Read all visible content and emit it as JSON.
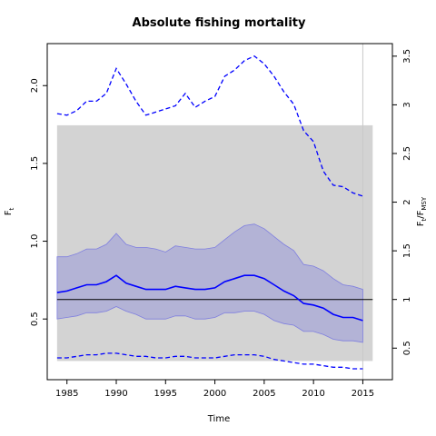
{
  "chart_data": {
    "type": "line",
    "title": "Absolute fishing mortality",
    "xlabel": "Time",
    "ylabel": "F",
    "ylabel_sub": "t",
    "y2label": "F",
    "y2label_sub": "t",
    "y2label_div": "/F",
    "y2label_div_sub": "MSY",
    "xlim": [
      1983,
      2018
    ],
    "ylim": [
      0.11,
      2.27
    ],
    "y2_scale_factor": 0.6255,
    "xticks": [
      1985,
      1990,
      1995,
      2000,
      2005,
      2010,
      2015
    ],
    "yticks": [
      0.5,
      1.0,
      1.5,
      2.0
    ],
    "yticklabels": [
      "0.5",
      "1.0",
      "1.5",
      "2.0"
    ],
    "y2ticks": [
      0.5,
      1,
      1.5,
      2,
      2.5,
      3,
      3.5
    ],
    "y2ticklabels": [
      "0.5",
      "1",
      "1.5",
      "2",
      "2.5",
      "3",
      "3.5"
    ],
    "grey_band": {
      "x": [
        1984,
        2016
      ],
      "y": [
        0.23,
        1.745
      ]
    },
    "fmsy_line": 0.6255,
    "last_obs_vline": 2015,
    "colors": {
      "estimate": "#0000ff",
      "ci_fill": "#b3b3d6",
      "ci_edge": "#7f7fdf",
      "grey_band": "#d3d3d3",
      "fmsy": "#000000",
      "vline": "#c8c8c8"
    },
    "x": [
      1984,
      1985,
      1986,
      1987,
      1988,
      1989,
      1990,
      1991,
      1992,
      1993,
      1994,
      1995,
      1996,
      1997,
      1998,
      1999,
      2000,
      2001,
      2002,
      2003,
      2004,
      2005,
      2006,
      2007,
      2008,
      2009,
      2010,
      2011,
      2012,
      2013,
      2014,
      2015
    ],
    "series": [
      {
        "name": "estimate",
        "style": "solid",
        "values": [
          0.67,
          0.68,
          0.7,
          0.72,
          0.72,
          0.74,
          0.78,
          0.73,
          0.71,
          0.69,
          0.69,
          0.69,
          0.71,
          0.7,
          0.69,
          0.69,
          0.7,
          0.74,
          0.76,
          0.78,
          0.78,
          0.76,
          0.72,
          0.68,
          0.65,
          0.6,
          0.59,
          0.57,
          0.53,
          0.51,
          0.51,
          0.49
        ]
      },
      {
        "name": "upper_ci",
        "style": "band_edge",
        "values": [
          0.9,
          0.9,
          0.92,
          0.95,
          0.95,
          0.98,
          1.05,
          0.98,
          0.96,
          0.96,
          0.95,
          0.93,
          0.97,
          0.96,
          0.95,
          0.95,
          0.96,
          1.01,
          1.06,
          1.1,
          1.11,
          1.08,
          1.03,
          0.98,
          0.94,
          0.85,
          0.84,
          0.81,
          0.76,
          0.72,
          0.71,
          0.69
        ]
      },
      {
        "name": "lower_ci",
        "style": "band_edge",
        "values": [
          0.5,
          0.51,
          0.52,
          0.54,
          0.54,
          0.55,
          0.58,
          0.55,
          0.53,
          0.5,
          0.5,
          0.5,
          0.52,
          0.52,
          0.5,
          0.5,
          0.51,
          0.54,
          0.54,
          0.55,
          0.55,
          0.53,
          0.49,
          0.47,
          0.46,
          0.42,
          0.42,
          0.4,
          0.37,
          0.36,
          0.36,
          0.35
        ]
      },
      {
        "name": "upper_pred",
        "style": "dashed",
        "values": [
          1.82,
          1.81,
          1.84,
          1.9,
          1.9,
          1.95,
          2.11,
          2.01,
          1.9,
          1.81,
          1.83,
          1.85,
          1.87,
          1.95,
          1.86,
          1.9,
          1.93,
          2.06,
          2.1,
          2.16,
          2.19,
          2.14,
          2.06,
          1.96,
          1.88,
          1.71,
          1.64,
          1.45,
          1.36,
          1.35,
          1.31,
          1.29
        ]
      },
      {
        "name": "lower_pred",
        "style": "dashed",
        "values": [
          0.25,
          0.25,
          0.26,
          0.27,
          0.27,
          0.28,
          0.28,
          0.27,
          0.26,
          0.26,
          0.25,
          0.25,
          0.26,
          0.26,
          0.25,
          0.25,
          0.25,
          0.26,
          0.27,
          0.27,
          0.27,
          0.26,
          0.24,
          0.23,
          0.22,
          0.21,
          0.21,
          0.2,
          0.19,
          0.19,
          0.18,
          0.18
        ]
      }
    ]
  }
}
